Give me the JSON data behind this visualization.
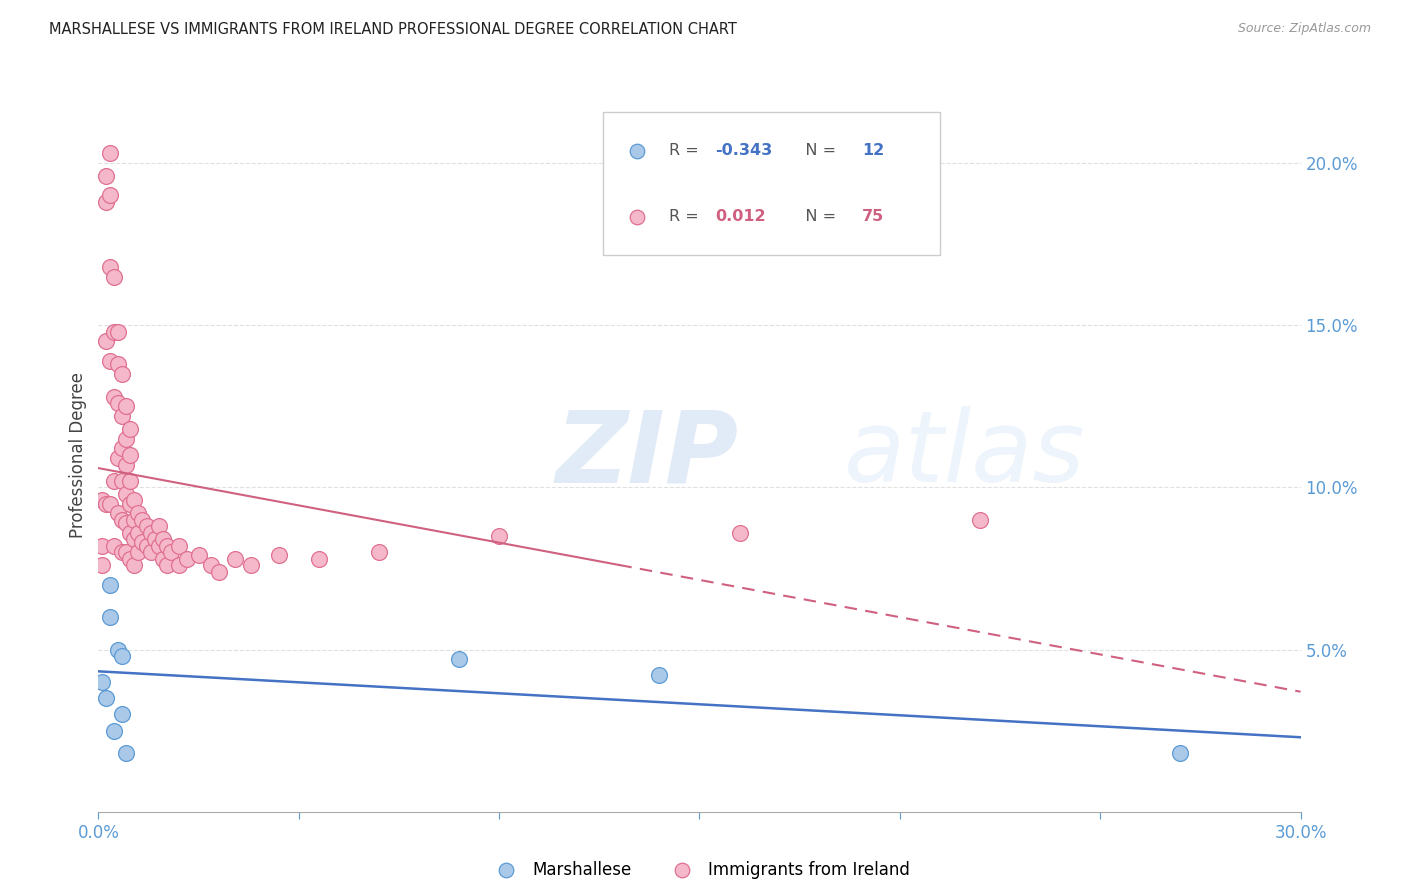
{
  "title": "MARSHALLESE VS IMMIGRANTS FROM IRELAND PROFESSIONAL DEGREE CORRELATION CHART",
  "source": "Source: ZipAtlas.com",
  "ylabel": "Professional Degree",
  "xlim": [
    0.0,
    0.3
  ],
  "ylim": [
    0.0,
    0.22
  ],
  "xticks": [
    0.0,
    0.05,
    0.1,
    0.15,
    0.2,
    0.25,
    0.3
  ],
  "yticks_right": [
    0.0,
    0.05,
    0.1,
    0.15,
    0.2
  ],
  "yticklabels_right": [
    "",
    "5.0%",
    "10.0%",
    "15.0%",
    "20.0%"
  ],
  "grid_color": "#e0e0e0",
  "tick_color": "#5b9bd5",
  "marshallese_fill": "#aac8e8",
  "marshallese_edge": "#5b9bd5",
  "ireland_fill": "#f5b8ca",
  "ireland_edge": "#e07090",
  "trend_blue": "#4472c4",
  "trend_pink": "#d06080",
  "R_blue": "-0.343",
  "N_blue": "12",
  "R_pink": "0.012",
  "N_pink": "75",
  "watermark_zip": "ZIP",
  "watermark_atlas": "atlas",
  "marsh_x": [
    0.001,
    0.002,
    0.003,
    0.003,
    0.004,
    0.005,
    0.006,
    0.006,
    0.007,
    0.09,
    0.14,
    0.27
  ],
  "marsh_y": [
    0.04,
    0.035,
    0.06,
    0.07,
    0.025,
    0.05,
    0.048,
    0.03,
    0.018,
    0.047,
    0.042,
    0.018
  ],
  "ire_x": [
    0.001,
    0.001,
    0.001,
    0.002,
    0.002,
    0.002,
    0.002,
    0.003,
    0.003,
    0.003,
    0.003,
    0.003,
    0.004,
    0.004,
    0.004,
    0.004,
    0.004,
    0.005,
    0.005,
    0.005,
    0.005,
    0.005,
    0.006,
    0.006,
    0.006,
    0.006,
    0.006,
    0.006,
    0.007,
    0.007,
    0.007,
    0.007,
    0.007,
    0.007,
    0.008,
    0.008,
    0.008,
    0.008,
    0.008,
    0.008,
    0.009,
    0.009,
    0.009,
    0.009,
    0.01,
    0.01,
    0.01,
    0.011,
    0.011,
    0.012,
    0.012,
    0.013,
    0.013,
    0.014,
    0.015,
    0.015,
    0.016,
    0.016,
    0.017,
    0.017,
    0.018,
    0.02,
    0.02,
    0.022,
    0.025,
    0.028,
    0.03,
    0.034,
    0.038,
    0.045,
    0.055,
    0.07,
    0.1,
    0.16,
    0.22
  ],
  "ire_y": [
    0.096,
    0.082,
    0.076,
    0.196,
    0.188,
    0.145,
    0.095,
    0.203,
    0.19,
    0.168,
    0.139,
    0.095,
    0.165,
    0.148,
    0.128,
    0.102,
    0.082,
    0.148,
    0.138,
    0.126,
    0.109,
    0.092,
    0.135,
    0.122,
    0.112,
    0.102,
    0.09,
    0.08,
    0.125,
    0.115,
    0.107,
    0.098,
    0.089,
    0.08,
    0.118,
    0.11,
    0.102,
    0.095,
    0.086,
    0.078,
    0.096,
    0.09,
    0.084,
    0.076,
    0.092,
    0.086,
    0.08,
    0.09,
    0.083,
    0.088,
    0.082,
    0.086,
    0.08,
    0.084,
    0.088,
    0.082,
    0.084,
    0.078,
    0.082,
    0.076,
    0.08,
    0.082,
    0.076,
    0.078,
    0.079,
    0.076,
    0.074,
    0.078,
    0.076,
    0.079,
    0.078,
    0.08,
    0.085,
    0.086,
    0.09
  ]
}
